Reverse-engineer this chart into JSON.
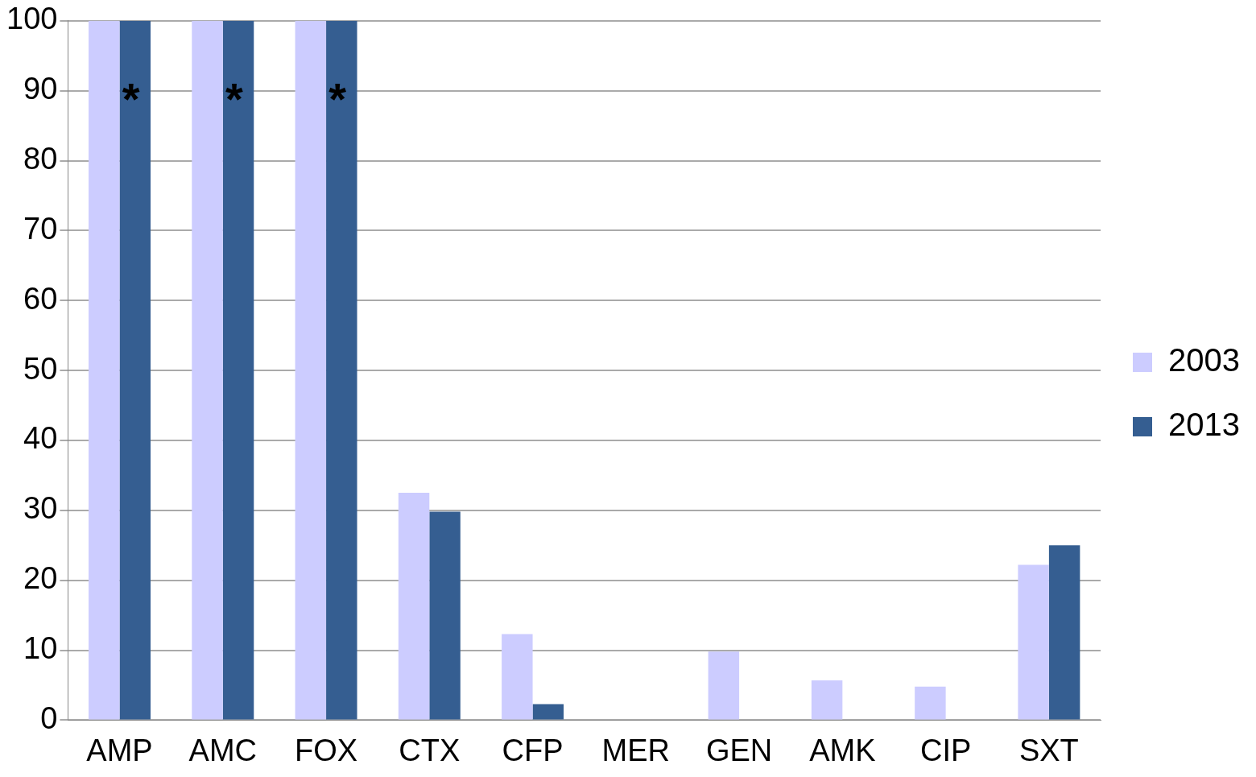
{
  "chart_data": {
    "type": "bar",
    "categories": [
      "AMP",
      "AMC",
      "FOX",
      "CTX",
      "CFP",
      "MER",
      "GEN",
      "AMK",
      "CIP",
      "SXT"
    ],
    "series": [
      {
        "name": "2003",
        "color": "#ccccff",
        "values": [
          100,
          100,
          100,
          32.5,
          12.3,
          0,
          9.8,
          5.7,
          4.8,
          22.2
        ]
      },
      {
        "name": "2013",
        "color": "#355e91",
        "values": [
          100,
          100,
          100,
          29.8,
          2.3,
          0,
          0,
          0,
          0,
          25
        ]
      }
    ],
    "ylim": [
      0,
      100
    ],
    "yticks": [
      0,
      10,
      20,
      30,
      40,
      50,
      60,
      70,
      80,
      90,
      100
    ],
    "grid": "y",
    "legend": "right",
    "annotations": [
      {
        "text": "*",
        "x": "AMP",
        "y": 90
      },
      {
        "text": "*",
        "x": "AMC",
        "y": 90
      },
      {
        "text": "*",
        "x": "FOX",
        "y": 90
      }
    ]
  }
}
